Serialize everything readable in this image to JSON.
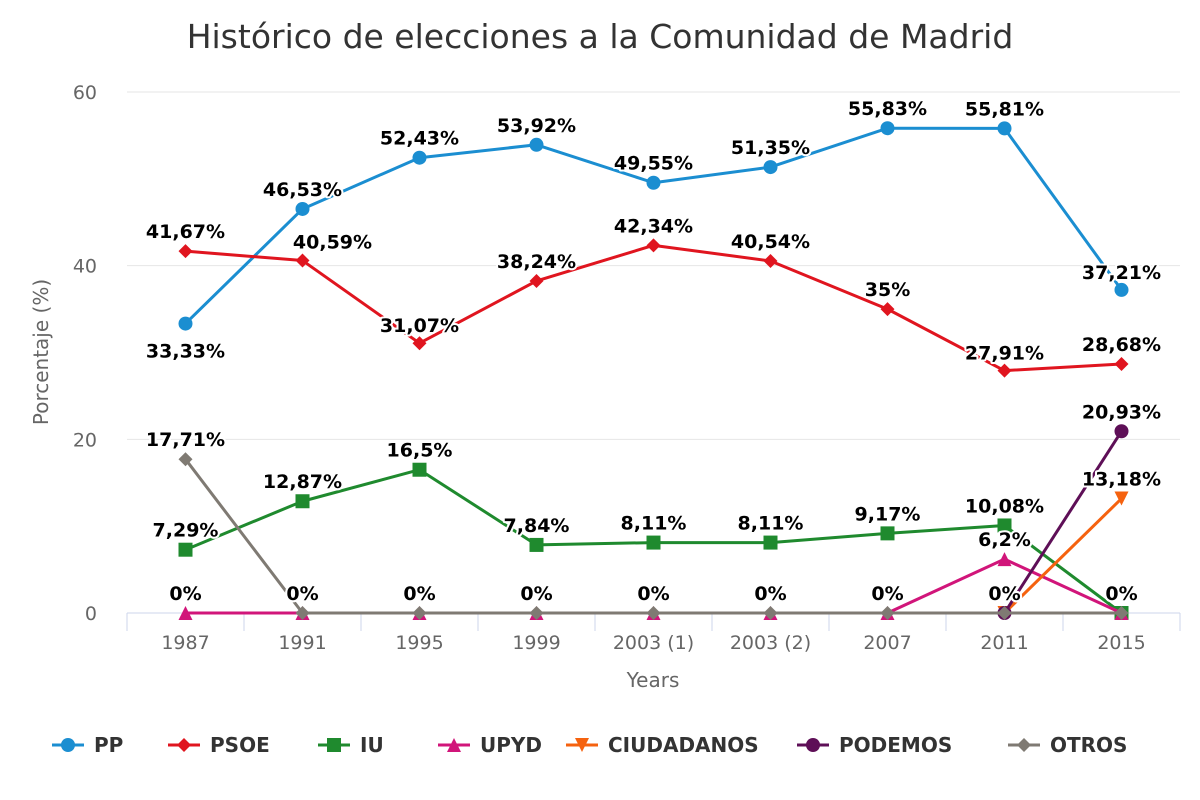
{
  "chart_data": {
    "type": "line",
    "title": "Histórico de elecciones a la Comunidad de Madrid",
    "xlabel": "Years",
    "ylabel": "Porcentaje (%)",
    "ylim": [
      0,
      60
    ],
    "yticks": [
      "0",
      "20",
      "40",
      "60"
    ],
    "grid": true,
    "legend_position": "bottom",
    "categories": [
      "1987",
      "1991",
      "1995",
      "1999",
      "2003 (1)",
      "2003 (2)",
      "2007",
      "2011",
      "2015"
    ],
    "series": [
      {
        "name": "PP",
        "color": "#1b8ed1",
        "marker": "circle",
        "values": [
          33.33,
          46.53,
          52.43,
          53.92,
          49.55,
          51.35,
          55.83,
          55.81,
          37.21
        ],
        "labels": [
          "33,33%",
          "46,53%",
          "52,43%",
          "53,92%",
          "49,55%",
          "51,35%",
          "55,83%",
          "55,81%",
          "37,21%"
        ]
      },
      {
        "name": "PSOE",
        "color": "#e0151f",
        "marker": "diamond",
        "values": [
          41.67,
          40.59,
          31.07,
          38.24,
          42.34,
          40.54,
          35,
          27.91,
          28.68
        ],
        "labels": [
          "41,67%",
          "40,59%",
          "31,07%",
          "38,24%",
          "42,34%",
          "40,54%",
          "35%",
          "27,91%",
          "28,68%"
        ]
      },
      {
        "name": "IU",
        "color": "#1f8a2e",
        "marker": "square",
        "values": [
          7.29,
          12.87,
          16.5,
          7.84,
          8.11,
          8.11,
          9.17,
          10.08,
          0
        ],
        "labels": [
          "7,29%",
          "12,87%",
          "16,5%",
          "7,84%",
          "8,11%",
          "8,11%",
          "9,17%",
          "10,08%",
          "0%"
        ]
      },
      {
        "name": "UPYD",
        "color": "#d1157a",
        "marker": "triangle",
        "values": [
          0,
          0,
          0,
          0,
          0,
          0,
          0,
          6.2,
          0
        ],
        "labels": [
          "0%",
          "0%",
          "0%",
          "0%",
          "0%",
          "0%",
          "0%",
          "6,2%",
          "0%"
        ]
      },
      {
        "name": "CIUDADANOS",
        "color": "#f5620f",
        "marker": "triangle-down",
        "values": [
          null,
          null,
          null,
          null,
          null,
          null,
          null,
          0,
          13.18
        ],
        "labels": [
          null,
          null,
          null,
          null,
          null,
          null,
          null,
          "0%",
          "13,18%"
        ]
      },
      {
        "name": "PODEMOS",
        "color": "#5e0f57",
        "marker": "circle",
        "values": [
          null,
          null,
          null,
          null,
          null,
          null,
          null,
          0,
          20.93
        ],
        "labels": [
          null,
          null,
          null,
          null,
          null,
          null,
          null,
          "0%",
          "20,93%"
        ]
      },
      {
        "name": "OTROS",
        "color": "#7f7a73",
        "marker": "diamond",
        "values": [
          17.71,
          0,
          0,
          0,
          0,
          0,
          0,
          0,
          0
        ],
        "labels": [
          "17,71%",
          "0%",
          "0%",
          "0%",
          "0%",
          "0%",
          "0%",
          "0%",
          "0%"
        ]
      }
    ]
  }
}
